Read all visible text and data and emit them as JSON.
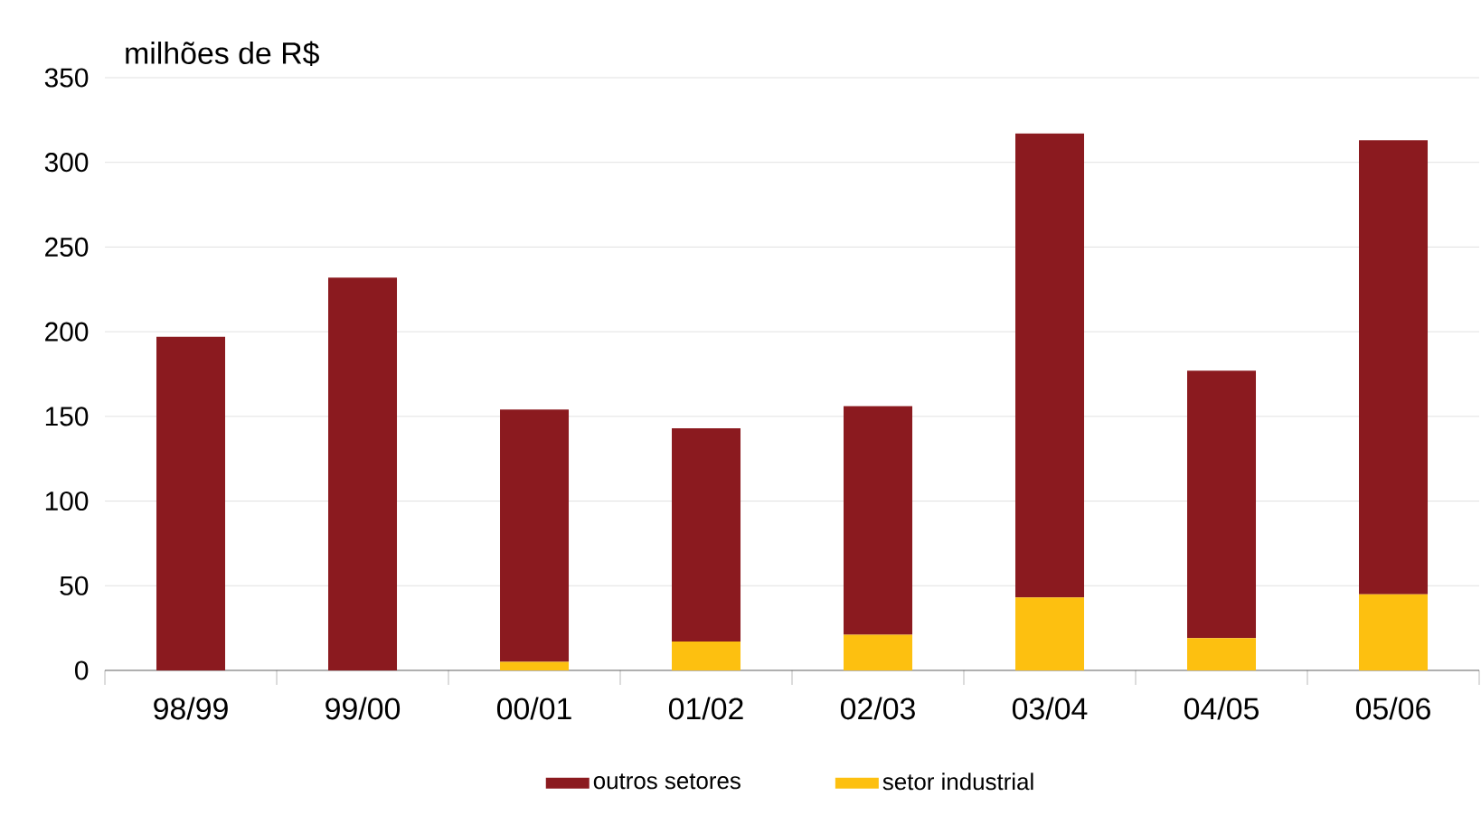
{
  "chart_data": {
    "type": "bar",
    "stacked": true,
    "ylabel": "milhões de R$",
    "categories": [
      "98/99",
      "99/00",
      "00/01",
      "01/02",
      "02/03",
      "03/04",
      "04/05",
      "05/06"
    ],
    "series": [
      {
        "name": "setor industrial",
        "color": "#fdc010",
        "values": [
          0,
          0,
          5,
          17,
          21,
          43,
          19,
          45
        ]
      },
      {
        "name": "outros setores",
        "color": "#8b1a1f",
        "values": [
          197,
          232,
          149,
          126,
          135,
          274,
          158,
          268
        ]
      }
    ],
    "ylim": [
      0,
      350
    ],
    "yticks": [
      0,
      50,
      100,
      150,
      200,
      250,
      300,
      350
    ],
    "grid": "y",
    "legend": "bottom"
  }
}
